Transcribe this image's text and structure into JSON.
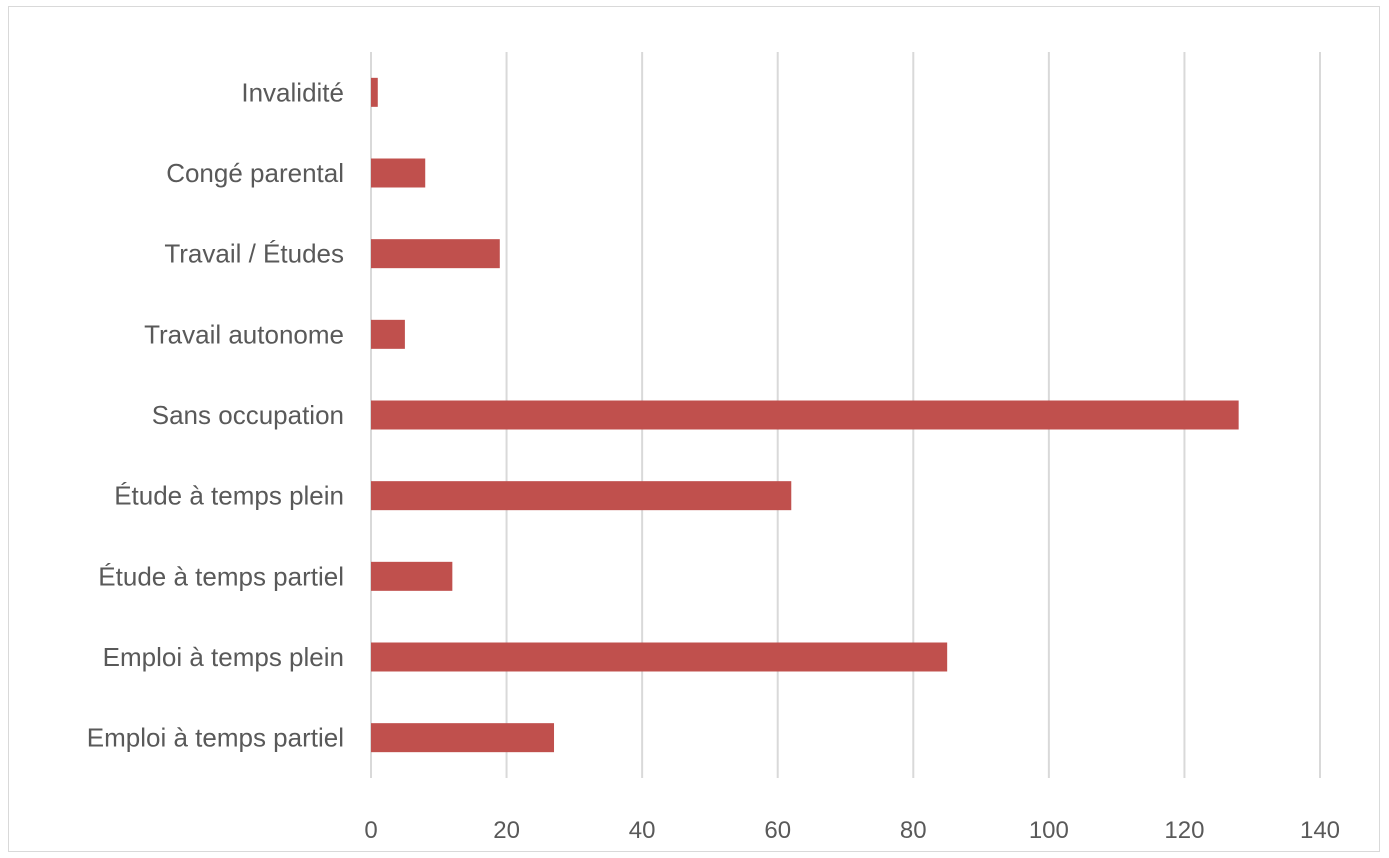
{
  "chart_data": {
    "type": "bar",
    "orientation": "horizontal",
    "categories": [
      "Invalidité",
      "Congé parental",
      "Travail / Études",
      "Travail autonome",
      "Sans occupation",
      "Étude à temps plein",
      "Étude à temps partiel",
      "Emploi à temps plein",
      "Emploi à temps partiel"
    ],
    "values": [
      1,
      8,
      19,
      5,
      128,
      62,
      12,
      85,
      27
    ],
    "xlim": [
      0,
      140
    ],
    "xticks": [
      "0",
      "20",
      "40",
      "60",
      "80",
      "100",
      "120",
      "140"
    ],
    "title": "",
    "xlabel": "",
    "ylabel": "",
    "grid": "vertical",
    "legend": "none",
    "bar_color": "#c0504d",
    "grid_color": "#d9d9d9"
  }
}
